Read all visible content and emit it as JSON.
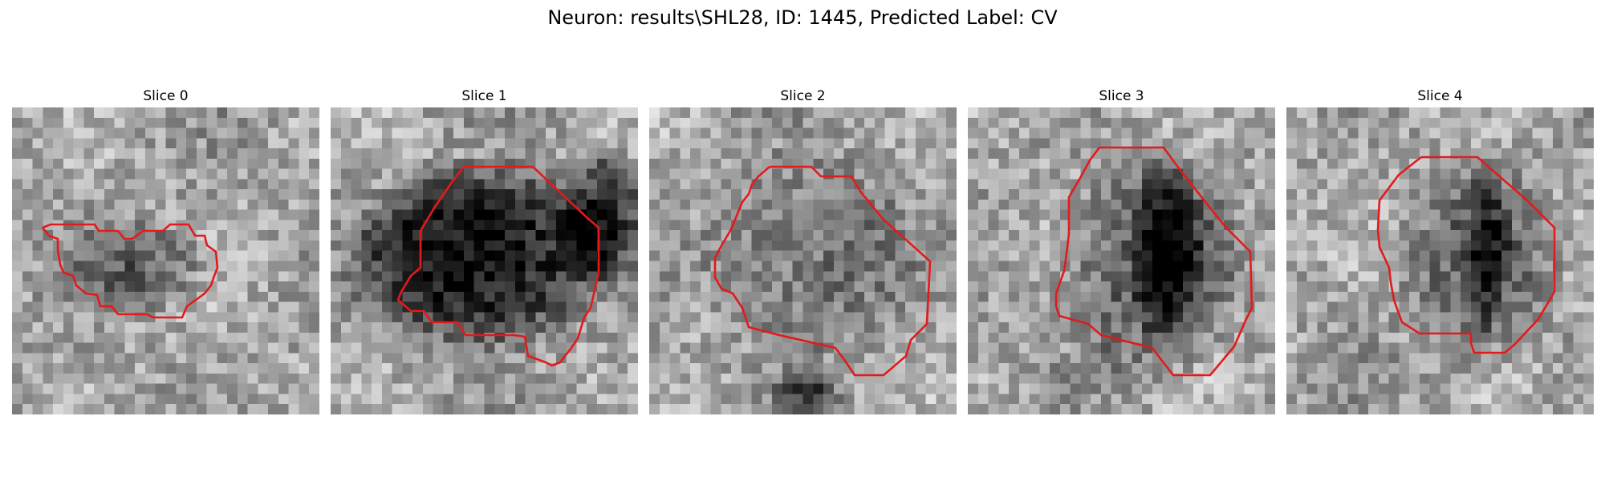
{
  "figure": {
    "title": "Neuron: results\\SHL28, ID: 1445, Predicted Label: CV"
  },
  "panels": [
    {
      "title": "Slice 0"
    },
    {
      "title": "Slice 1"
    },
    {
      "title": "Slice 2"
    },
    {
      "title": "Slice 3"
    },
    {
      "title": "Slice 4"
    }
  ],
  "colors": {
    "contour": "#e31a1c",
    "background": "#ffffff"
  },
  "image_style": "grayscale-pixel-patch"
}
